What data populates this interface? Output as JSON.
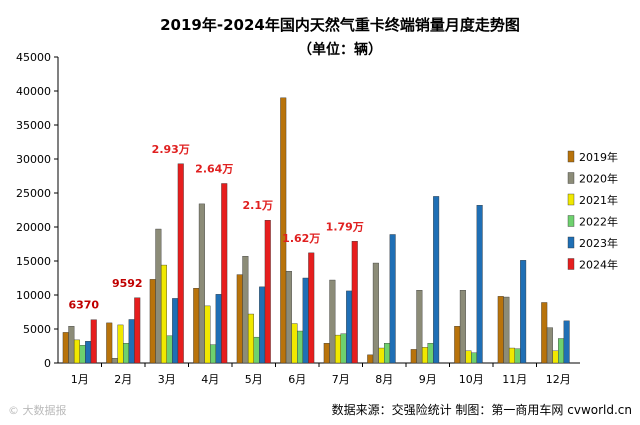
{
  "chart_data": {
    "type": "bar",
    "title": "2019年-2024年国内天然气重卡终端销量月度走势图",
    "subtitle": "（单位：辆）",
    "categories": [
      "1月",
      "2月",
      "3月",
      "4月",
      "5月",
      "6月",
      "7月",
      "8月",
      "9月",
      "10月",
      "11月",
      "12月"
    ],
    "ylim": [
      0,
      45000
    ],
    "yticks": [
      0,
      5000,
      10000,
      15000,
      20000,
      25000,
      30000,
      35000,
      40000,
      45000
    ],
    "grid": false,
    "legend_position": "right",
    "series": [
      {
        "name": "2019年",
        "color": "#b8730b",
        "values": [
          4500,
          5900,
          12300,
          11000,
          13000,
          39000,
          2900,
          1200,
          2000,
          5400,
          9800,
          8900
        ]
      },
      {
        "name": "2020年",
        "color": "#8c8c78",
        "values": [
          5400,
          700,
          19700,
          23400,
          15700,
          13500,
          12200,
          14700,
          10700,
          10700,
          9700,
          5200
        ]
      },
      {
        "name": "2021年",
        "color": "#f0e800",
        "values": [
          3400,
          5600,
          14400,
          8400,
          7200,
          5800,
          4100,
          2200,
          2300,
          1800,
          2200,
          1800
        ]
      },
      {
        "name": "2022年",
        "color": "#6ed16e",
        "values": [
          2600,
          2900,
          4000,
          2700,
          3800,
          4700,
          4300,
          2900,
          2900,
          1500,
          2100,
          3600
        ]
      },
      {
        "name": "2023年",
        "color": "#1f6fb5",
        "values": [
          3200,
          6400,
          9500,
          10100,
          11200,
          12500,
          10600,
          18900,
          24500,
          23200,
          15100,
          6200
        ]
      },
      {
        "name": "2024年",
        "color": "#e61e1e",
        "values": [
          6370,
          9592,
          29300,
          26400,
          21000,
          16200,
          17900,
          null,
          null,
          null,
          null,
          null
        ]
      }
    ],
    "annotations": [
      {
        "text": "6370",
        "category": "1月",
        "series": "2024年"
      },
      {
        "text": "9592",
        "category": "2月",
        "series": "2024年"
      },
      {
        "text": "2.93万",
        "category": "3月",
        "series": "2024年"
      },
      {
        "text": "2.64万",
        "category": "4月",
        "series": "2024年"
      },
      {
        "text": "2.1万",
        "category": "5月",
        "series": "2024年"
      },
      {
        "text": "1.62万",
        "category": "6月",
        "series": "2024年"
      },
      {
        "text": "1.79万",
        "category": "7月",
        "series": "2024年"
      }
    ]
  },
  "footer": "数据来源：交强险统计  制图：第一商用车网 cvworld.cn",
  "watermark": "© 大数据报"
}
